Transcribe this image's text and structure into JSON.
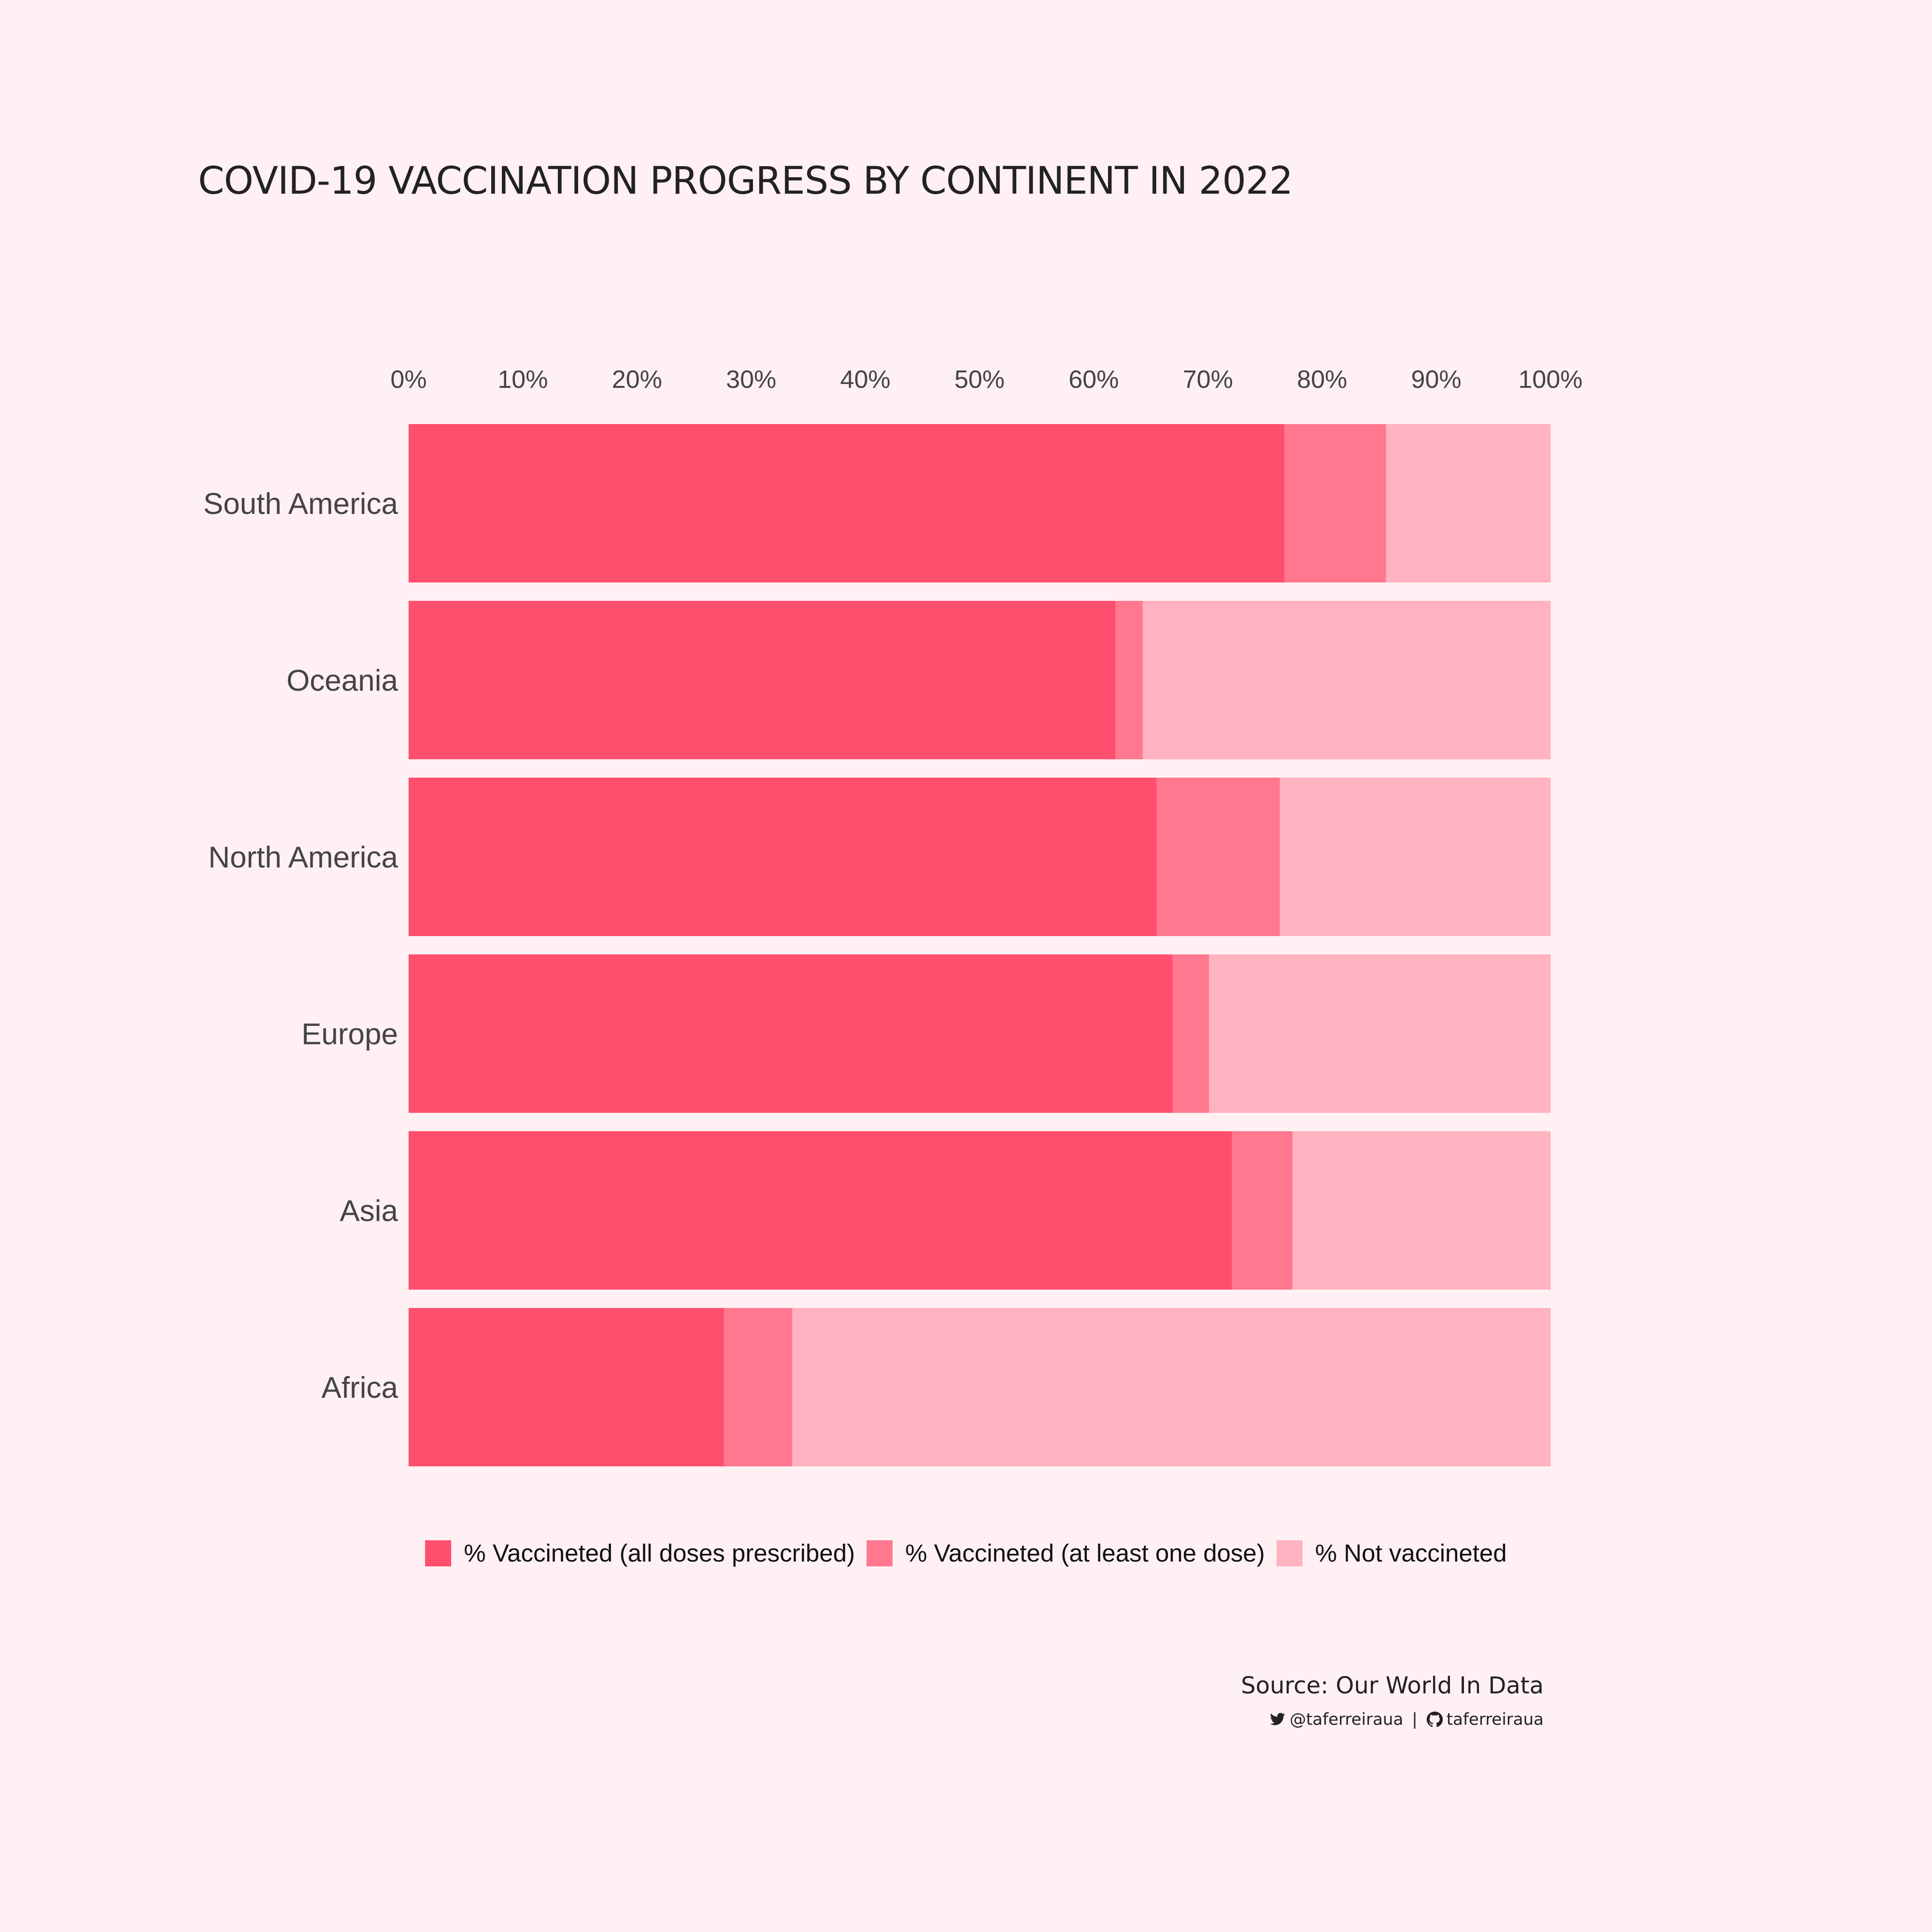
{
  "header": {
    "title": "COVID-19 VACCINATION PROGRESS BY CONTINENT IN 2022"
  },
  "chart_data": {
    "type": "bar",
    "orientation": "horizontal",
    "stacked": true,
    "categories": [
      "South America",
      "Oceania",
      "North America",
      "Europe",
      "Asia",
      "Africa"
    ],
    "series": [
      {
        "name": "% Vaccineted (all doses prescribed)",
        "color": "#ff4f6e",
        "values": [
          76.7,
          61.9,
          65.5,
          66.9,
          72.1,
          27.6
        ]
      },
      {
        "name": "% Vaccineted (at least one dose)",
        "color": "#ff7890",
        "values": [
          8.9,
          2.4,
          10.8,
          3.2,
          5.3,
          6.0
        ]
      },
      {
        "name": "% Not vaccineted",
        "color": "#ffb3c0",
        "values": [
          14.4,
          35.7,
          23.7,
          29.9,
          22.6,
          66.4
        ]
      }
    ],
    "x_ticks": [
      "0%",
      "10%",
      "20%",
      "30%",
      "40%",
      "50%",
      "60%",
      "70%",
      "80%",
      "90%",
      "100%"
    ],
    "xlim": [
      0,
      100
    ],
    "x_axis_position": "top",
    "grid": false,
    "legend_position": "bottom"
  },
  "footer": {
    "source": "Source: Our World In Data",
    "twitter_handle": "@taferreiraua",
    "separator": "|",
    "github_handle": "taferreiraua",
    "twitter_icon": "twitter-icon",
    "github_icon": "github-icon"
  }
}
